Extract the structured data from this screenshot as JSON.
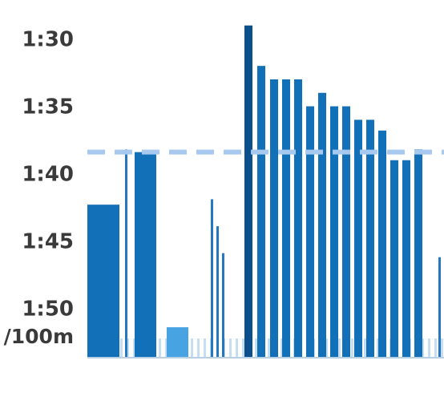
{
  "chart_data": {
    "type": "bar",
    "y_axis": {
      "unit_label": "/100m",
      "ticks": [
        "1:30",
        "1:35",
        "1:40",
        "1:45",
        "1:50"
      ],
      "tick_values_sec": [
        90,
        95,
        100,
        105,
        110
      ],
      "range_sec": [
        88.3,
        113.6
      ],
      "inverted": true
    },
    "reference_line_sec": 98.4,
    "colors": {
      "tick_text": "#3a3a3a",
      "bar": "#1270b8",
      "bar_dark": "#0b4f8c",
      "bar_thin": "#2577bf",
      "bar_light": "#48a3e2",
      "reference_line": "#a8c9ef",
      "rest_marks": "#c6ddf3",
      "baseline": "#b9cfe4"
    },
    "bars": [
      {
        "pace_sec": 102.3,
        "weight": 40,
        "style": "bar"
      },
      {
        "pace_sec": 98.2,
        "weight": 3,
        "style": "bar_thin"
      },
      {
        "pace_sec": 98.4,
        "weight": 27,
        "style": "bar"
      },
      {
        "pace_sec": 111.4,
        "weight": 27,
        "style": "bar_light"
      },
      {
        "pace_sec": 101.9,
        "weight": 3,
        "style": "bar_thin"
      },
      {
        "pace_sec": 103.9,
        "weight": 3,
        "style": "bar_thin"
      },
      {
        "pace_sec": 105.9,
        "weight": 3,
        "style": "bar_thin"
      },
      {
        "pace_sec": 89.0,
        "weight": 10,
        "style": "bar_dark"
      },
      {
        "pace_sec": 92.0,
        "weight": 10,
        "style": "bar"
      },
      {
        "pace_sec": 93.0,
        "weight": 10,
        "style": "bar"
      },
      {
        "pace_sec": 93.0,
        "weight": 10,
        "style": "bar"
      },
      {
        "pace_sec": 93.0,
        "weight": 10,
        "style": "bar"
      },
      {
        "pace_sec": 95.0,
        "weight": 10,
        "style": "bar"
      },
      {
        "pace_sec": 94.0,
        "weight": 10,
        "style": "bar"
      },
      {
        "pace_sec": 95.0,
        "weight": 10,
        "style": "bar"
      },
      {
        "pace_sec": 95.0,
        "weight": 10,
        "style": "bar"
      },
      {
        "pace_sec": 96.0,
        "weight": 10,
        "style": "bar"
      },
      {
        "pace_sec": 96.0,
        "weight": 10,
        "style": "bar"
      },
      {
        "pace_sec": 96.8,
        "weight": 10,
        "style": "bar"
      },
      {
        "pace_sec": 99.0,
        "weight": 10,
        "style": "bar"
      },
      {
        "pace_sec": 99.0,
        "weight": 10,
        "style": "bar"
      },
      {
        "pace_sec": 98.2,
        "weight": 10,
        "style": "bar"
      },
      {
        "pace_sec": 106.2,
        "weight": 3,
        "style": "bar_thin"
      }
    ]
  }
}
